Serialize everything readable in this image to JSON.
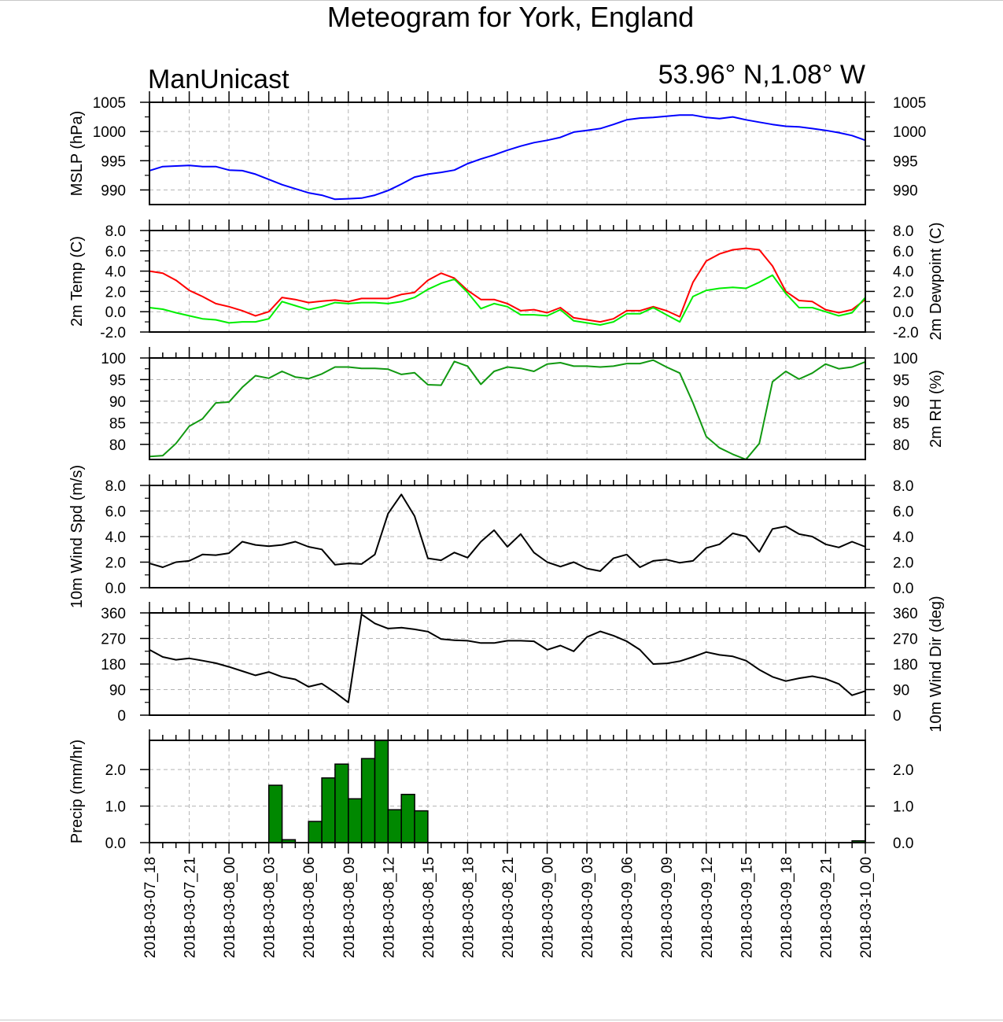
{
  "title": "Meteogram for York, England",
  "model_label": "ManUnicast",
  "location_label": "53.96° N,1.08° W",
  "colors": {
    "mslp": "#0000ff",
    "temp": "#ff0000",
    "dewpoint": "#00ee00",
    "rh": "#119911",
    "wind": "#000000",
    "precip_fill": "#008800",
    "grid": "#b4b4b4"
  },
  "chart_data": [
    {
      "type": "line",
      "id": "mslp",
      "ylabel_left": "MSLP (hPa)",
      "ylabel_right": "",
      "ylim": [
        987.5,
        1005
      ],
      "yticks": [
        990,
        995,
        1000,
        1005
      ],
      "ytick_labels": [
        "990",
        "995",
        "1000",
        "1005"
      ],
      "series": [
        {
          "values": [
            993.3,
            994,
            994.1,
            994.2,
            994,
            994,
            993.4,
            993.3,
            992.7,
            991.8,
            990.9,
            990.2,
            989.5,
            989.1,
            988.4,
            988.5,
            988.6,
            989.1,
            989.9,
            991,
            992.2,
            992.7,
            993,
            993.4,
            994.5,
            995.3,
            996,
            996.8,
            997.5,
            998.1,
            998.5,
            999,
            999.9,
            1000.2,
            1000.5,
            1001.2,
            1002,
            1002.3,
            1002.4,
            1002.6,
            1002.8,
            1002.8,
            1002.4,
            1002.2,
            1002.5,
            1002,
            1001.6,
            1001.2,
            1000.9,
            1000.8,
            1000.5,
            1000.2,
            999.8,
            999.3,
            998.5
          ]
        }
      ]
    },
    {
      "type": "line",
      "id": "temp",
      "ylabel_left": "2m Temp (C)",
      "ylabel_right": "2m Dewpoint (C)",
      "ylim": [
        -2,
        8
      ],
      "yticks": [
        -2,
        0,
        2,
        4,
        6,
        8
      ],
      "ytick_labels": [
        "-2.0",
        "0.0",
        "2.0",
        "4.0",
        "6.0",
        "8.0"
      ],
      "series": [
        {
          "values": [
            4,
            3.8,
            3.1,
            2.1,
            1.5,
            0.8,
            0.5,
            0.1,
            -0.4,
            0,
            1.4,
            1.2,
            0.9,
            1.05,
            1.15,
            1.0,
            1.3,
            1.3,
            1.3,
            1.7,
            1.9,
            3.1,
            3.8,
            3.3,
            2.1,
            1.2,
            1.2,
            0.8,
            0.1,
            0.2,
            -0.1,
            0.4,
            -0.6,
            -0.8,
            -1.0,
            -0.7,
            0.1,
            0.1,
            0.5,
            0.1,
            -0.5,
            2.9,
            5.0,
            5.7,
            6.1,
            6.25,
            6.1,
            4.5,
            2.0,
            1.1,
            1.0,
            0.2,
            -0.1,
            0.2,
            1.2
          ]
        },
        {
          "values": [
            0.4,
            0.25,
            -0.1,
            -0.4,
            -0.7,
            -0.8,
            -1.1,
            -1.0,
            -1.0,
            -0.7,
            1.0,
            0.6,
            0.2,
            0.5,
            0.9,
            0.8,
            0.9,
            0.9,
            0.8,
            1.0,
            1.4,
            2.2,
            2.8,
            3.2,
            1.9,
            0.3,
            0.8,
            0.5,
            -0.3,
            -0.3,
            -0.4,
            0.2,
            -0.9,
            -1.1,
            -1.3,
            -1.0,
            -0.2,
            -0.2,
            0.4,
            -0.3,
            -1.0,
            1.5,
            2.1,
            2.3,
            2.4,
            2.3,
            2.9,
            3.6,
            1.8,
            0.4,
            0.4,
            0.0,
            -0.4,
            -0.1,
            1.4
          ]
        }
      ]
    },
    {
      "type": "line",
      "id": "rh",
      "ylabel_left": "",
      "ylabel_right": "2m RH (%)",
      "ylim": [
        76.5,
        100
      ],
      "yticks": [
        80,
        85,
        90,
        95,
        100
      ],
      "ytick_labels": [
        "80",
        "85",
        "90",
        "95",
        "100"
      ],
      "series": [
        {
          "values": [
            77.2,
            77.4,
            80.2,
            84.2,
            85.9,
            89.6,
            89.8,
            93.2,
            95.9,
            95.3,
            96.9,
            95.6,
            95.2,
            96.3,
            97.9,
            97.9,
            97.6,
            97.6,
            97.4,
            96.2,
            96.6,
            93.8,
            93.7,
            99.2,
            98.1,
            93.9,
            96.9,
            97.9,
            97.6,
            96.9,
            98.6,
            98.9,
            98.1,
            98.1,
            97.9,
            98.1,
            98.7,
            98.7,
            99.5,
            97.9,
            96.5,
            89.6,
            81.8,
            79.2,
            77.7,
            76.5,
            80.2,
            94.5,
            96.9,
            95.1,
            96.5,
            98.6,
            97.5,
            97.9,
            99.1
          ]
        }
      ]
    },
    {
      "type": "line",
      "id": "wspd",
      "ylabel_left": "10m Wind Spd (m/s)",
      "ylabel_right": "",
      "ylim": [
        0,
        8
      ],
      "yticks": [
        0,
        2,
        4,
        6,
        8
      ],
      "ytick_labels": [
        "0.0",
        "2.0",
        "4.0",
        "6.0",
        "8.0"
      ],
      "series": [
        {
          "values": [
            1.9,
            1.6,
            2.0,
            2.1,
            2.6,
            2.55,
            2.7,
            3.6,
            3.35,
            3.25,
            3.35,
            3.6,
            3.2,
            3.0,
            1.8,
            1.9,
            1.85,
            2.6,
            5.8,
            7.3,
            5.6,
            2.3,
            2.15,
            2.75,
            2.35,
            3.6,
            4.5,
            3.2,
            4.2,
            2.75,
            2.0,
            1.65,
            2.0,
            1.5,
            1.3,
            2.3,
            2.6,
            1.6,
            2.1,
            2.2,
            1.95,
            2.1,
            3.1,
            3.4,
            4.25,
            4.0,
            2.8,
            4.6,
            4.8,
            4.2,
            4.0,
            3.4,
            3.15,
            3.6,
            3.2
          ]
        }
      ]
    },
    {
      "type": "line",
      "id": "wdir",
      "ylabel_left": "",
      "ylabel_right": "10m Wind Dir (deg)",
      "ylim": [
        0,
        360
      ],
      "yticks": [
        0,
        90,
        180,
        270,
        360
      ],
      "ytick_labels": [
        "0",
        "90",
        "180",
        "270",
        "360"
      ],
      "series": [
        {
          "values": [
            230,
            205,
            195,
            200,
            192,
            183,
            170,
            155,
            140,
            152,
            135,
            126,
            100,
            111,
            80,
            45,
            355,
            323,
            305,
            308,
            302,
            294,
            268,
            264,
            262,
            254,
            254,
            262,
            262,
            260,
            230,
            245,
            225,
            275,
            295,
            280,
            260,
            230,
            180,
            182,
            190,
            205,
            222,
            212,
            207,
            192,
            160,
            135,
            120,
            130,
            137,
            128,
            110,
            70,
            85
          ]
        }
      ]
    },
    {
      "type": "bar",
      "id": "precip",
      "ylabel_left": "Precip (mm/hr)",
      "ylabel_right": "",
      "ylim": [
        0,
        2.8
      ],
      "yticks": [
        0,
        1,
        2
      ],
      "ytick_labels": [
        "0.0",
        "1.0",
        "2.0"
      ],
      "values": [
        0,
        0,
        0,
        0,
        0,
        0,
        0,
        0,
        0,
        0,
        1.57,
        0.08,
        0,
        0.58,
        1.77,
        2.15,
        1.2,
        2.3,
        2.8,
        0.9,
        1.32,
        0.87,
        0,
        0,
        0,
        0,
        0,
        0,
        0,
        0,
        0,
        0,
        0,
        0,
        0,
        0,
        0,
        0,
        0,
        0,
        0,
        0,
        0,
        0,
        0,
        0,
        0,
        0,
        0,
        0,
        0,
        0,
        0,
        0,
        0.05
      ]
    }
  ],
  "x_labels": [
    "2018-03-07_18",
    "2018-03-07_21",
    "2018-03-08_00",
    "2018-03-08_03",
    "2018-03-08_06",
    "2018-03-08_09",
    "2018-03-08_12",
    "2018-03-08_15",
    "2018-03-08_18",
    "2018-03-08_21",
    "2018-03-09_00",
    "2018-03-09_03",
    "2018-03-09_06",
    "2018-03-09_09",
    "2018-03-09_12",
    "2018-03-09_15",
    "2018-03-09_18",
    "2018-03-09_21",
    "2018-03-10_00"
  ]
}
